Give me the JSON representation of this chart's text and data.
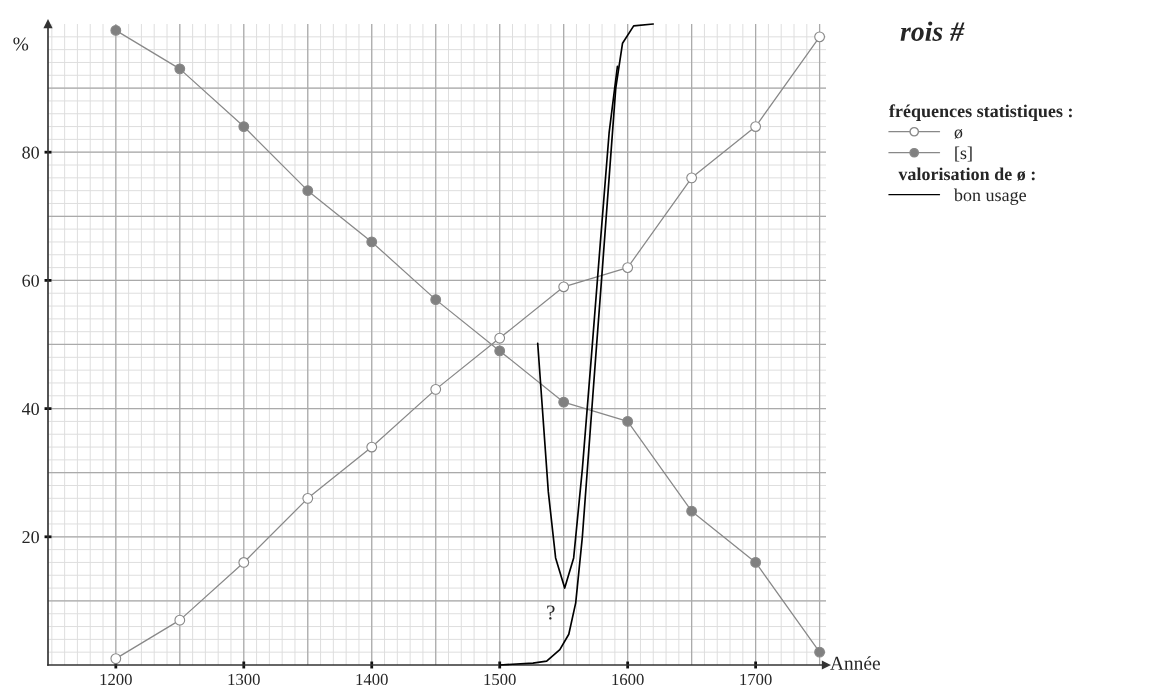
{
  "chart_data": {
    "type": "line",
    "title": "rois #",
    "xlabel": "Année",
    "ylabel": "%",
    "legend_title": "fréquences statistiques :",
    "annotations": [
      "?",
      "valorisation de ø :"
    ],
    "xlim": [
      1147,
      1755
    ],
    "ylim": [
      0,
      100
    ],
    "xticks": [
      1200,
      {
        "value": 1250,
        "label": null
      },
      1300,
      {
        "value": 1350,
        "label": null
      },
      1400,
      {
        "value": 1450,
        "label": null
      },
      1500,
      {
        "value": 1550,
        "label": null
      },
      1600,
      {
        "value": 1650,
        "label": null
      },
      1700,
      {
        "value": 1750,
        "label": null
      }
    ],
    "yticks": [
      {
        "value": 10,
        "label": null
      },
      20,
      {
        "value": 30,
        "label": null
      },
      40,
      {
        "value": 50,
        "label": null
      },
      60,
      {
        "value": 70,
        "label": null
      },
      80,
      {
        "value": 90,
        "label": null
      }
    ],
    "grid": true,
    "legend": "right",
    "series": [
      {
        "name": "ø",
        "color": "#ffffff",
        "marker": "circle",
        "x": [
          1200,
          1250,
          1300,
          1350,
          1400,
          1450,
          1500,
          1550,
          1600,
          1650,
          1700,
          1750
        ],
        "values": [
          1,
          7,
          16,
          26,
          34,
          43,
          51,
          59,
          62,
          76,
          84,
          98
        ]
      },
      {
        "name": "[s]",
        "color": "#808080",
        "marker": "circle",
        "x": [
          1200,
          1250,
          1300,
          1350,
          1400,
          1450,
          1500,
          1550,
          1600,
          1650,
          1700,
          1750
        ],
        "values": [
          99,
          93,
          84,
          74,
          66,
          57,
          49,
          41,
          38,
          24,
          16,
          2
        ]
      },
      {
        "name": "bon usage",
        "color": "#000000",
        "marker": "none",
        "x": [
          1500,
          1526,
          1536.7,
          1547,
          1554,
          1559.4,
          1564.6,
          1569.8,
          1575,
          1580.3,
          1585.5,
          1590.7,
          1596,
          1604.7,
          1620
        ],
        "values": [
          0,
          0.3,
          0.6,
          2.4,
          4.8,
          9.7,
          20,
          34,
          48,
          62,
          76,
          90,
          97,
          99.7,
          100
        ]
      },
      {
        "color": "#000000",
        "marker": "none",
        "x": [
          1529.7,
          1533,
          1538,
          1543.7,
          1550.8,
          1557.8,
          1564.6,
          1571.6,
          1578.5,
          1585.5,
          1592
        ],
        "values": [
          50.2,
          41,
          27,
          16.7,
          12,
          16.7,
          30.6,
          48,
          65.5,
          83,
          93.4
        ]
      }
    ]
  }
}
